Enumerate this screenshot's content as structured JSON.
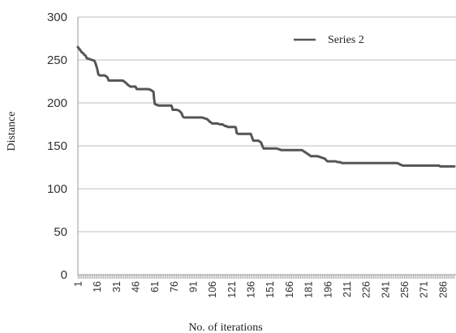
{
  "chart_data": {
    "type": "line",
    "title": "",
    "xlabel": "No. of iterations",
    "ylabel": "Distance",
    "ylim": [
      0,
      300
    ],
    "yticks": [
      0,
      50,
      100,
      150,
      200,
      250,
      300
    ],
    "xlim": [
      1,
      295
    ],
    "xticks": [
      "1",
      "16",
      "31",
      "46",
      "61",
      "76",
      "91",
      "106",
      "121",
      "136",
      "151",
      "166",
      "181",
      "196",
      "211",
      "226",
      "241",
      "256",
      "271",
      "286"
    ],
    "grid": "horizontal",
    "legend": "top-right",
    "series": [
      {
        "name": "Series 2",
        "color": "#555555",
        "x": [
          1,
          2,
          3,
          4,
          5,
          6,
          7,
          8,
          10,
          12,
          14,
          15,
          16,
          17,
          18,
          20,
          22,
          24,
          25,
          26,
          28,
          30,
          32,
          34,
          36,
          38,
          40,
          41,
          42,
          44,
          46,
          47,
          48,
          50,
          52,
          54,
          56,
          58,
          60,
          60.5,
          61,
          62,
          64,
          66,
          68,
          70,
          72,
          74,
          74.5,
          75,
          76,
          78,
          80,
          82,
          83,
          84,
          86,
          88,
          90,
          92,
          94,
          96,
          98,
          100,
          102,
          104,
          106,
          107,
          108,
          110,
          112,
          114,
          116,
          117,
          118,
          120,
          122,
          124,
          124.5,
          125,
          126,
          128,
          130,
          132,
          134,
          136,
          137,
          138,
          140,
          142,
          144,
          145,
          146,
          148,
          150,
          152,
          154,
          156,
          158,
          160,
          162,
          164,
          166,
          168,
          170,
          172,
          174,
          176,
          177,
          178,
          180,
          182,
          183,
          184,
          186,
          188,
          190,
          192,
          194,
          195,
          196,
          198,
          200,
          202,
          204,
          206,
          207,
          208,
          210,
          215,
          220,
          225,
          230,
          235,
          240,
          245,
          250,
          252,
          253,
          255,
          260,
          265,
          270,
          275,
          280,
          283,
          284,
          286,
          290,
          295
        ],
        "values": [
          265,
          263,
          261,
          259,
          258,
          256,
          255,
          252,
          251,
          250,
          249,
          245,
          240,
          233,
          232,
          232,
          232,
          230,
          226,
          226,
          226,
          226,
          226,
          226,
          226,
          224,
          221,
          220,
          219,
          219,
          219,
          216,
          216,
          216,
          216,
          216,
          216,
          215,
          213,
          205,
          199,
          198,
          197,
          197,
          197,
          197,
          197,
          197,
          195,
          192,
          192,
          192,
          191,
          188,
          184,
          183,
          183,
          183,
          183,
          183,
          183,
          183,
          183,
          182,
          181,
          178,
          176,
          176,
          176,
          176,
          175,
          175,
          173,
          173,
          172,
          172,
          172,
          172,
          170,
          165,
          164,
          164,
          164,
          164,
          164,
          164,
          160,
          156,
          156,
          156,
          154,
          150,
          147,
          147,
          147,
          147,
          147,
          147,
          146,
          145,
          145,
          145,
          145,
          145,
          145,
          145,
          145,
          145,
          144,
          143,
          141,
          139,
          138,
          138,
          138,
          138,
          137,
          136,
          135,
          133,
          132,
          132,
          132,
          132,
          131,
          131,
          130,
          130,
          130,
          130,
          130,
          130,
          130,
          130,
          130,
          130,
          130,
          129,
          128,
          127,
          127,
          127,
          127,
          127,
          127,
          127,
          126,
          126,
          126,
          126
        ]
      }
    ]
  }
}
